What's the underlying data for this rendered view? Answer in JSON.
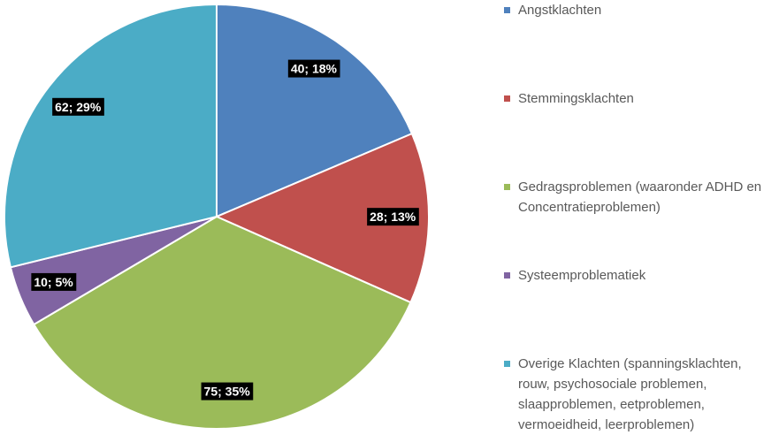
{
  "chart_data": {
    "type": "pie",
    "categories": [
      "Angstklachten",
      "Stemmingsklachten",
      "Gedragsproblemen (waaronder ADHD en Concentratieproblemen)",
      "Systeemproblematiek",
      "Overige Klachten (spanningsklachten, rouw, psychosociale problemen, slaapproblemen, eetproblemen, vermoeidheid, leerproblemen)"
    ],
    "values": [
      40,
      28,
      75,
      10,
      62
    ],
    "value_labels": [
      "40; 18%",
      "28; 13%",
      "75; 35%",
      "10; 5%",
      "62; 29%"
    ],
    "colors": [
      "#4f81bd",
      "#c0504d",
      "#9bbb59",
      "#8064a2",
      "#4bacc6"
    ],
    "legend": "right"
  }
}
